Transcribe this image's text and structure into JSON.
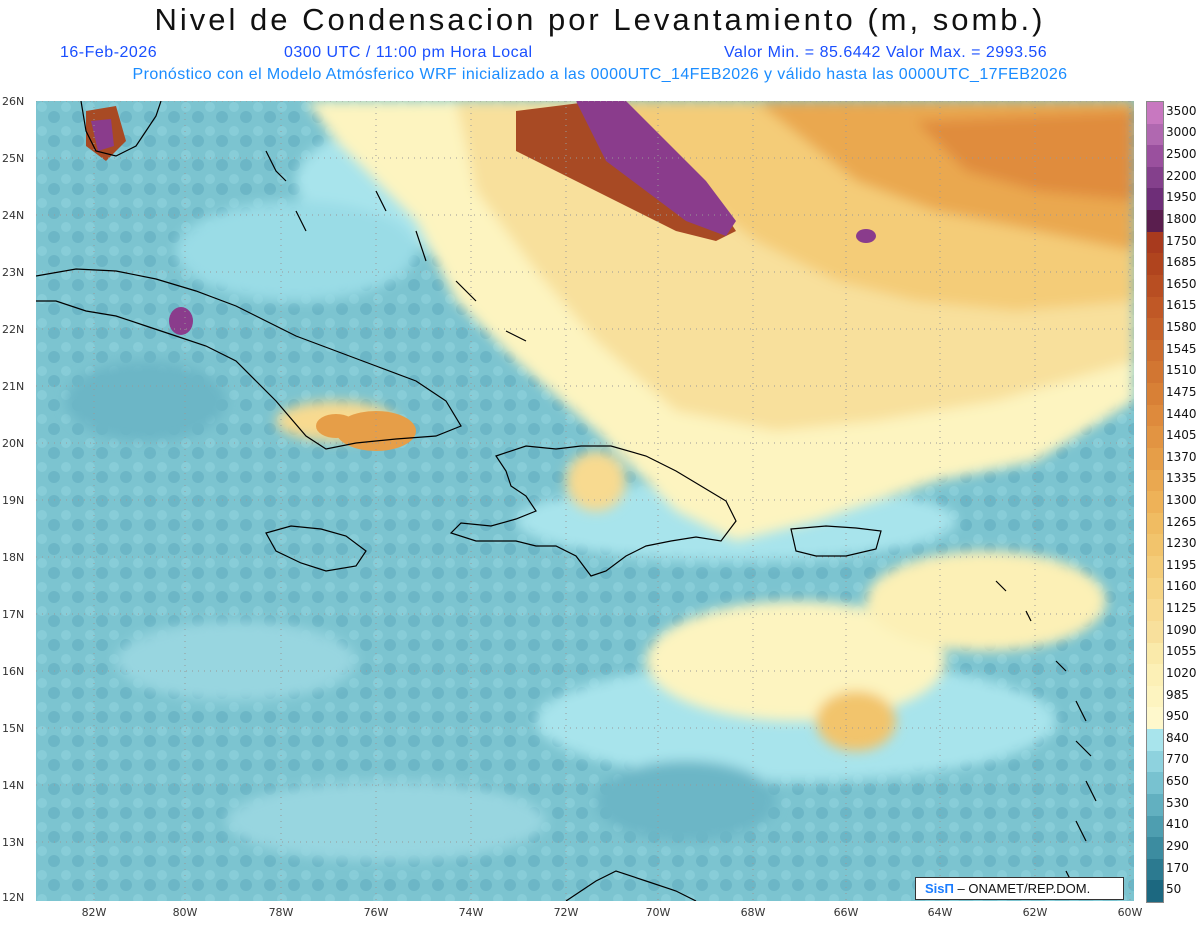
{
  "header": {
    "title": "Nivel de Condensacion por Levantamiento (m, somb.)",
    "date": "16-Feb-2026",
    "time": "0300 UTC / 11:00 pm Hora Local",
    "minmax": "Valor Min. = 85.6442   Valor Max. = 2993.56",
    "forecast": "Pronóstico con el Modelo Atmósferico WRF inicializado a las 0000UTC_14FEB2026 y válido hasta las  0000UTC_17FEB2026"
  },
  "axes": {
    "lat_labels": [
      "26N",
      "25N",
      "24N",
      "23N",
      "22N",
      "21N",
      "20N",
      "19N",
      "18N",
      "17N",
      "16N",
      "15N",
      "14N",
      "13N",
      "12N"
    ],
    "lon_labels": [
      "82W",
      "80W",
      "78W",
      "76W",
      "74W",
      "72W",
      "70W",
      "68W",
      "66W",
      "64W",
      "62W",
      "60W"
    ]
  },
  "legend": {
    "values": [
      "3500",
      "3000",
      "2500",
      "2200",
      "1950",
      "1800",
      "1750",
      "1685",
      "1650",
      "1615",
      "1580",
      "1545",
      "1510",
      "1475",
      "1440",
      "1405",
      "1370",
      "1335",
      "1300",
      "1265",
      "1230",
      "1195",
      "1160",
      "1125",
      "1090",
      "1055",
      "1020",
      "985",
      "950",
      "840",
      "770",
      "650",
      "530",
      "410",
      "290",
      "170",
      "50"
    ],
    "colors": [
      "#c878c0",
      "#b068b0",
      "#9a509e",
      "#84408c",
      "#6e2e78",
      "#5a1e4e",
      "#a83a1e",
      "#b0441e",
      "#b84e22",
      "#c05826",
      "#c6622a",
      "#cc6c2e",
      "#d27632",
      "#d88036",
      "#de8a3c",
      "#e29442",
      "#e69e48",
      "#eaa850",
      "#eeb258",
      "#f0bc62",
      "#f2c46c",
      "#f4cc78",
      "#f6d484",
      "#f8da90",
      "#f8e09c",
      "#faeaaa",
      "#fcf0b6",
      "#fdf4c0",
      "#fef8cc",
      "#a8e4ec",
      "#8ed2de",
      "#78c2d0",
      "#62b0c0",
      "#4e9eb0",
      "#3c8ca0",
      "#2c7a90",
      "#1c6880"
    ]
  },
  "credit": {
    "sis": "SisΠ",
    "text": "– ONAMET/REP.DOM."
  }
}
